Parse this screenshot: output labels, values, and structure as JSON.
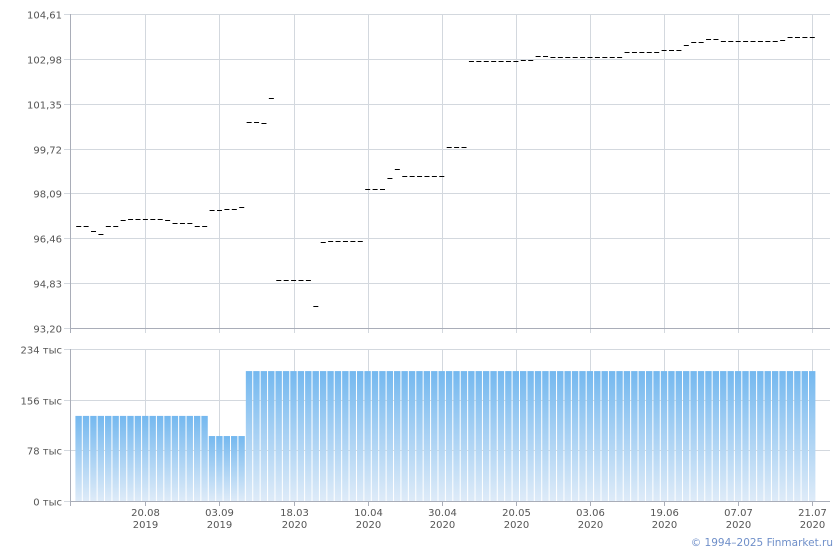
{
  "chart_data": [
    {
      "type": "scatter",
      "title": "",
      "marker": "dash",
      "ylabel": "",
      "ylim": [
        93.2,
        104.61
      ],
      "y_ticks": [
        "104,61",
        "102,98",
        "101,35",
        "99,72",
        "98,09",
        "96,46",
        "94,83",
        "93,20"
      ],
      "y_tick_values": [
        104.61,
        102.98,
        101.35,
        99.72,
        98.09,
        96.46,
        94.83,
        93.2
      ],
      "grid": true,
      "values": [
        96.9,
        96.9,
        96.72,
        96.6,
        96.9,
        96.9,
        97.12,
        97.15,
        97.15,
        97.15,
        97.15,
        97.15,
        97.12,
        97.0,
        97.0,
        97.0,
        96.9,
        96.9,
        97.48,
        97.48,
        97.51,
        97.51,
        97.59,
        100.67,
        100.67,
        100.64,
        101.55,
        94.93,
        94.93,
        94.93,
        94.93,
        94.93,
        94.0,
        96.31,
        96.36,
        96.36,
        96.36,
        96.36,
        96.36,
        98.24,
        98.24,
        98.24,
        98.64,
        98.97,
        98.72,
        98.72,
        98.72,
        98.72,
        98.72,
        98.72,
        99.78,
        99.78,
        99.78,
        102.89,
        102.89,
        102.89,
        102.89,
        102.89,
        102.89,
        102.89,
        102.93,
        102.93,
        103.07,
        103.07,
        103.05,
        103.05,
        103.05,
        103.05,
        103.05,
        103.05,
        103.05,
        103.05,
        103.05,
        103.05,
        103.22,
        103.22,
        103.22,
        103.22,
        103.22,
        103.29,
        103.29,
        103.29,
        103.47,
        103.59,
        103.59,
        103.71,
        103.69,
        103.62,
        103.62,
        103.62,
        103.62,
        103.62,
        103.62,
        103.62,
        103.62,
        103.65,
        103.76,
        103.76,
        103.76,
        103.76
      ]
    },
    {
      "type": "bar",
      "title": "",
      "ylabel": "",
      "ylim": [
        0,
        234
      ],
      "unit": "тыс",
      "y_ticks": [
        "234 тыс",
        "156 тыс",
        "78 тыс",
        "0 тыс"
      ],
      "y_tick_values": [
        234,
        156,
        78,
        0
      ],
      "grid": true,
      "values_group_counts": [
        18,
        5,
        77
      ],
      "values_group_levels": [
        131,
        100,
        200
      ]
    }
  ],
  "x_ticks": [
    {
      "index": 9,
      "day": "20.08",
      "year": "2019"
    },
    {
      "index": 19,
      "day": "03.09",
      "year": "2019"
    },
    {
      "index": 29,
      "day": "18.03",
      "year": "2020"
    },
    {
      "index": 39,
      "day": "10.04",
      "year": "2020"
    },
    {
      "index": 49,
      "day": "30.04",
      "year": "2020"
    },
    {
      "index": 59,
      "day": "20.05",
      "year": "2020"
    },
    {
      "index": 69,
      "day": "03.06",
      "year": "2020"
    },
    {
      "index": 79,
      "day": "19.06",
      "year": "2020"
    },
    {
      "index": 89,
      "day": "07.07",
      "year": "2020"
    },
    {
      "index": 99,
      "day": "21.07",
      "year": "2020"
    }
  ],
  "colors": {
    "bar_top": "#74b8ef",
    "bar_bottom": "#deebf8",
    "grid": "#d3d8de",
    "axis": "#a9adb8",
    "dash": "#000000"
  },
  "footer": {
    "copyright": "© 1994–2025 Finmarket.ru"
  }
}
